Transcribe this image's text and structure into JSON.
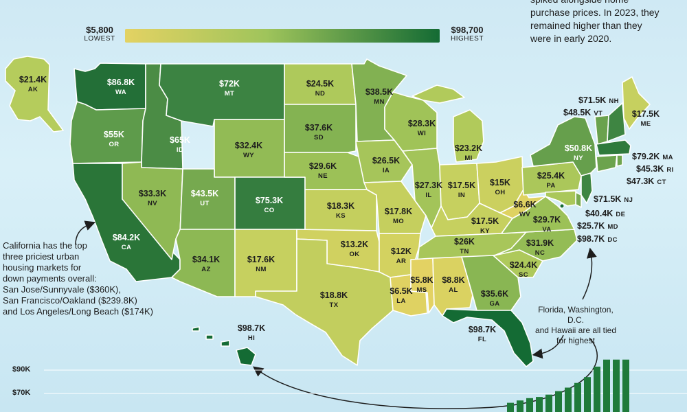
{
  "legend": {
    "min_value": "$5,800",
    "min_label": "LOWEST",
    "max_value": "$98,700",
    "max_label": "HIGHEST",
    "color_low": "#e3d263",
    "color_high": "#146b34"
  },
  "notes": {
    "top_right": [
      "spiked alongside home",
      "purchase prices. In 2023, they",
      "remained higher than they",
      "were in early 2020."
    ],
    "california": [
      "California has the top",
      "three priciest urban",
      "housing markets for",
      "down payments overall:",
      "San Jose/Sunnyvale ($360K),",
      "San Francisco/Oakland ($239.8K)",
      "and Los Angeles/Long Beach ($174K)"
    ],
    "tied": [
      "Florida, Washington, D.C.",
      "and Hawaii are all tied",
      "for highest"
    ]
  },
  "states": [
    {
      "code": "AK",
      "value": "$21.4K",
      "color": "#b5cc5c"
    },
    {
      "code": "WA",
      "value": "$86.8K",
      "color": "#236f37"
    },
    {
      "code": "OR",
      "value": "$55K",
      "color": "#5e9b4b"
    },
    {
      "code": "CA",
      "value": "$84.2K",
      "color": "#2a7538"
    },
    {
      "code": "ID",
      "value": "$65K",
      "color": "#4b8c45"
    },
    {
      "code": "NV",
      "value": "$33.3K",
      "color": "#8fb954"
    },
    {
      "code": "MT",
      "value": "$72K",
      "color": "#3c8342"
    },
    {
      "code": "WY",
      "value": "$32.4K",
      "color": "#92bb55"
    },
    {
      "code": "UT",
      "value": "$43.5K",
      "color": "#76a94f"
    },
    {
      "code": "AZ",
      "value": "$34.1K",
      "color": "#8db854"
    },
    {
      "code": "CO",
      "value": "$75.3K",
      "color": "#357d3f"
    },
    {
      "code": "NM",
      "value": "$17.6K",
      "color": "#c6d05f"
    },
    {
      "code": "ND",
      "value": "$24.5K",
      "color": "#aec95b"
    },
    {
      "code": "SD",
      "value": "$37.6K",
      "color": "#84b352"
    },
    {
      "code": "NE",
      "value": "$29.6K",
      "color": "#9cc157"
    },
    {
      "code": "KS",
      "value": "$18.3K",
      "color": "#c4cf5e"
    },
    {
      "code": "OK",
      "value": "$13.2K",
      "color": "#d0d160"
    },
    {
      "code": "TX",
      "value": "$18.8K",
      "color": "#c2ce5e"
    },
    {
      "code": "MN",
      "value": "$38.5K",
      "color": "#82b152"
    },
    {
      "code": "IA",
      "value": "$26.5K",
      "color": "#a6c55a"
    },
    {
      "code": "MO",
      "value": "$17.8K",
      "color": "#c5cf5e"
    },
    {
      "code": "AR",
      "value": "$12K",
      "color": "#d3d260"
    },
    {
      "code": "LA",
      "value": "$6.5K",
      "color": "#dfd262"
    },
    {
      "code": "WI",
      "value": "$28.3K",
      "color": "#a0c358"
    },
    {
      "code": "IL",
      "value": "$27.3K",
      "color": "#a3c459"
    },
    {
      "code": "MS",
      "value": "$5.8K",
      "color": "#e3d263"
    },
    {
      "code": "MI",
      "value": "$23.2K",
      "color": "#b1ca5b"
    },
    {
      "code": "IN",
      "value": "$17.5K",
      "color": "#c6d05f"
    },
    {
      "code": "KY",
      "value": "$17.5K",
      "color": "#c6d05f"
    },
    {
      "code": "TN",
      "value": "$26K",
      "color": "#a8c65a"
    },
    {
      "code": "AL",
      "value": "$8.8K",
      "color": "#dad261"
    },
    {
      "code": "GA",
      "value": "$35.6K",
      "color": "#89b653"
    },
    {
      "code": "FL",
      "value": "$98.7K",
      "color": "#146b34"
    },
    {
      "code": "OH",
      "value": "$15K",
      "color": "#cbd05f"
    },
    {
      "code": "WV",
      "value": "$6.6K",
      "color": "#dfd262"
    },
    {
      "code": "VA",
      "value": "$29.7K",
      "color": "#9cc157"
    },
    {
      "code": "NC",
      "value": "$31.9K",
      "color": "#94bc55"
    },
    {
      "code": "SC",
      "value": "$24.4K",
      "color": "#aec95b"
    },
    {
      "code": "PA",
      "value": "$25.4K",
      "color": "#abc75a"
    },
    {
      "code": "NY",
      "value": "$50.8K",
      "color": "#669f4c"
    },
    {
      "code": "ME",
      "value": "$17.5K",
      "color": "#c6d05f"
    },
    {
      "code": "HI",
      "value": "$98.7K",
      "color": "#146b34"
    }
  ],
  "northeast": [
    {
      "code": "NH",
      "value": "$71.5K"
    },
    {
      "code": "VT",
      "value": "$48.5K"
    },
    {
      "code": "MA",
      "value": "$79.2K"
    },
    {
      "code": "RI",
      "value": "$45.3K"
    },
    {
      "code": "CT",
      "value": "$47.3K"
    },
    {
      "code": "NJ",
      "value": "$71.5K"
    },
    {
      "code": "DE",
      "value": "$40.4K"
    },
    {
      "code": "MD",
      "value": "$25.7K"
    },
    {
      "code": "DC",
      "value": "$98.7K"
    }
  ],
  "northeast_colors": {
    "NH": "#3e8542",
    "VT": "#6aa24d",
    "MA": "#2f7a3c",
    "RI": "#6fa54e",
    "CT": "#6ca34d",
    "NJ": "#3e8542",
    "DE": "#7aab50",
    "MD": "#aac75a",
    "DC": "#146b34"
  },
  "bar_chart": {
    "y_ticks": [
      "$90K",
      "$70K"
    ],
    "bar_color": "#1f7a3a"
  },
  "chart_data": {
    "type": "bar",
    "title": "",
    "xlabel": "",
    "ylabel": "",
    "yticks": [
      "$90K",
      "$70K"
    ],
    "values": [
      62,
      64,
      66,
      67,
      69,
      72,
      75,
      79,
      84,
      93,
      99,
      99,
      99
    ],
    "ylim": [
      58,
      100
    ]
  }
}
